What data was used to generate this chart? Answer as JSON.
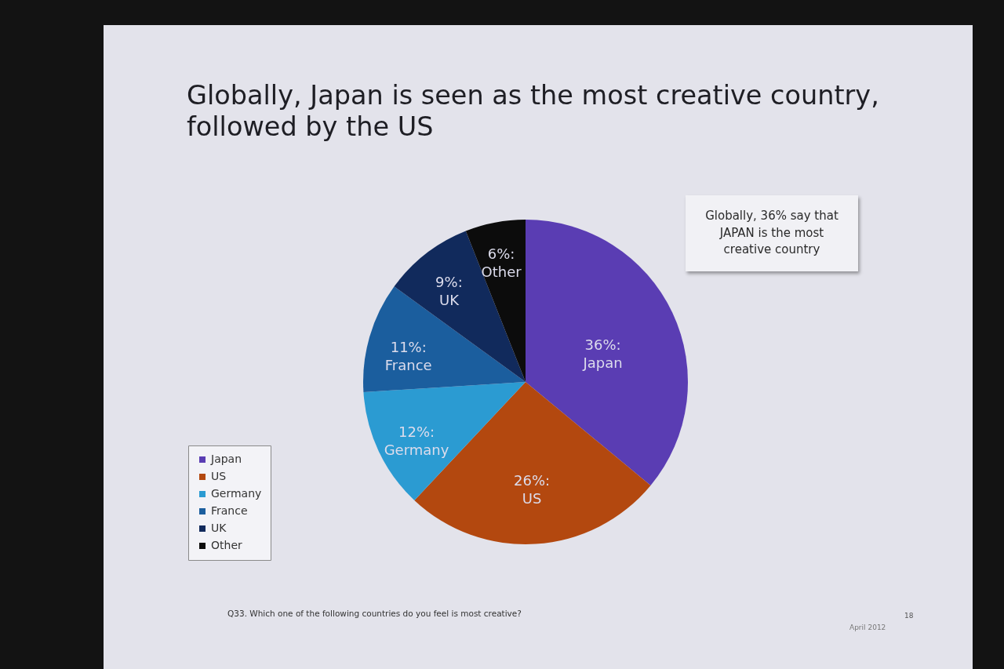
{
  "chart_data": {
    "type": "pie",
    "title": "Globally, Japan is seen as the most creative country, followed by the US",
    "categories": [
      "Japan",
      "US",
      "Germany",
      "France",
      "UK",
      "Other"
    ],
    "values": [
      36,
      26,
      12,
      11,
      9,
      6
    ],
    "colors": [
      "#5a3db3",
      "#b3480f",
      "#2b9bd2",
      "#1b5e9e",
      "#112a5c",
      "#0c0c0c"
    ],
    "value_labels": [
      "36%:\nJapan",
      "26%:\nUS",
      "12%:\nGermany",
      "11%:\nFrance",
      "9%:\nUK",
      "6%:\nOther"
    ],
    "legend": "bottom left",
    "annotations": [
      "Globally, 36% say that JAPAN is the most creative country",
      "Q33. Which one of the following countries do you feel is most creative?",
      "April 2012",
      "18"
    ]
  }
}
